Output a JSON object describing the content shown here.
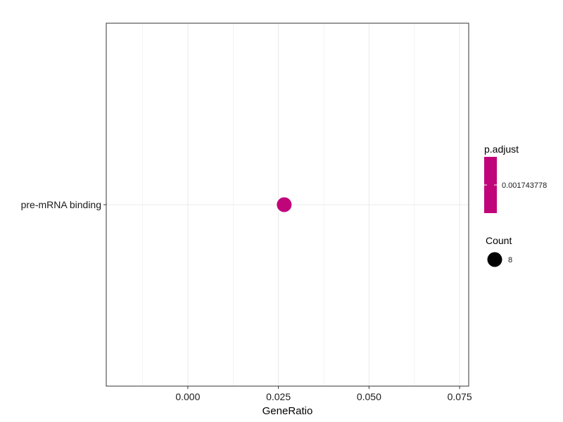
{
  "chart_data": {
    "type": "scatter",
    "title": "",
    "xlabel": "GeneRatio",
    "ylabel": "",
    "xlim": [
      -0.0225,
      0.0775
    ],
    "x_ticks": [
      0.0,
      0.025,
      0.05,
      0.075
    ],
    "x_tick_labels": [
      "0.000",
      "0.025",
      "0.050",
      "0.075"
    ],
    "categories": [
      "pre-mRNA binding"
    ],
    "points": [
      {
        "category": "pre-mRNA binding",
        "x": 0.0266,
        "count": 8,
        "p_adjust": 0.001743778
      }
    ],
    "grid": true,
    "point_color": "#C0047A",
    "legend": {
      "placement": "right",
      "color_title": "p.adjust",
      "color_label": "0.001743778",
      "color_swatch": "#C0047A",
      "size_title": "Count",
      "size_label": "8",
      "size_swatch": "#000000"
    }
  }
}
